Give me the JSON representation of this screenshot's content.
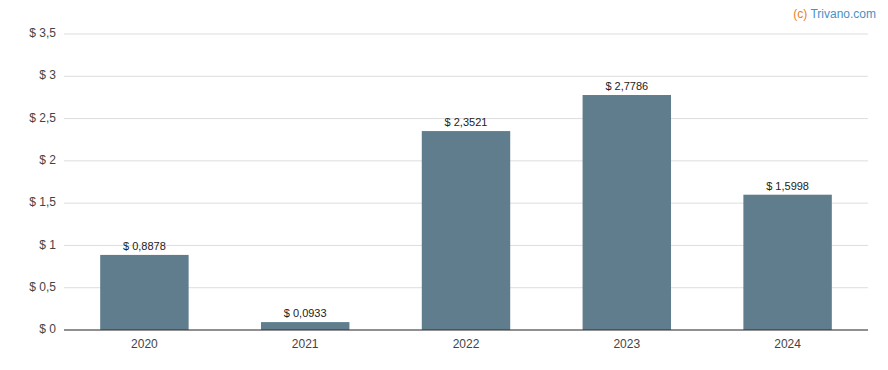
{
  "chart_data": {
    "type": "bar",
    "categories": [
      "2020",
      "2021",
      "2022",
      "2023",
      "2024"
    ],
    "values": [
      0.8878,
      0.0933,
      2.3521,
      2.7786,
      1.5998
    ],
    "value_labels": [
      "$ 0,8878",
      "$ 0,0933",
      "$ 2,3521",
      "$ 2,7786",
      "$ 1,5998"
    ],
    "color": "#5f7d8c",
    "ylim": [
      0,
      3.5
    ],
    "yticks": [
      {
        "value": 0,
        "label": "$ 0"
      },
      {
        "value": 0.5,
        "label": "$ 0,5"
      },
      {
        "value": 1.0,
        "label": "$ 1"
      },
      {
        "value": 1.5,
        "label": "$ 1,5"
      },
      {
        "value": 2.0,
        "label": "$ 2"
      },
      {
        "value": 2.5,
        "label": "$ 2,5"
      },
      {
        "value": 3.0,
        "label": "$ 3"
      },
      {
        "value": 3.5,
        "label": "$ 3,5"
      }
    ],
    "grid": true,
    "data_labels": true,
    "annotations": [
      {
        "text": "(c) ",
        "color": "#e8821a"
      },
      {
        "text": "Trivano.com",
        "color": "#4a90c4"
      }
    ]
  }
}
